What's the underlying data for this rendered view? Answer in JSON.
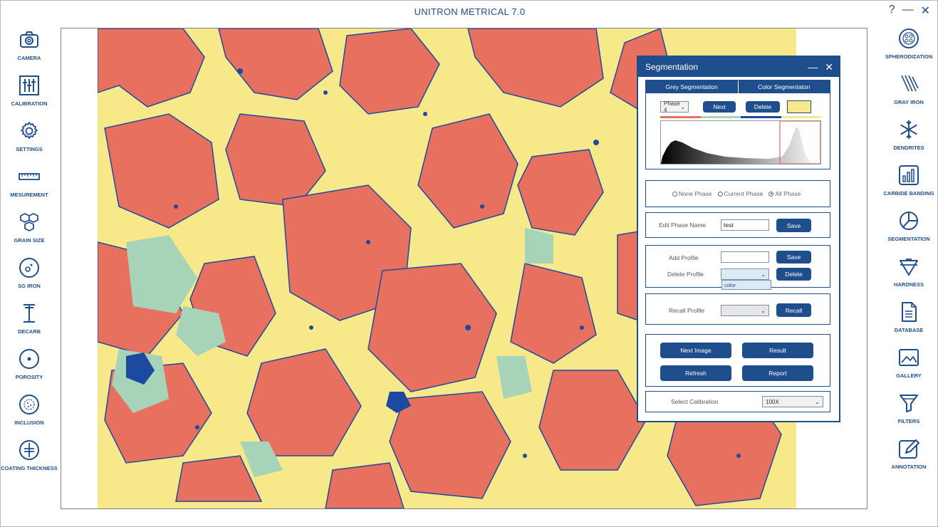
{
  "app": {
    "title": "UNITRON METRICAL 7.0"
  },
  "window_controls": {
    "help": "?",
    "minimize": "—",
    "close": "✕"
  },
  "left_toolbar": [
    {
      "label": "CAMERA",
      "icon": "camera-icon"
    },
    {
      "label": "CALIBRATION",
      "icon": "sliders-icon"
    },
    {
      "label": "SETTINGS",
      "icon": "gear-icon"
    },
    {
      "label": "MESUREMENT",
      "icon": "ruler-icon"
    },
    {
      "label": "GRAIN SIZE",
      "icon": "hexagons-icon"
    },
    {
      "label": "SG IRON",
      "icon": "sg-iron-icon"
    },
    {
      "label": "DECARB",
      "icon": "decarb-icon"
    },
    {
      "label": "POROSITY",
      "icon": "porosity-icon"
    },
    {
      "label": "INCLUSION",
      "icon": "inclusion-icon"
    },
    {
      "label": "COATING THICKNESS",
      "icon": "coating-icon"
    }
  ],
  "right_toolbar": [
    {
      "label": "SPHERODIZATION",
      "icon": "spherodization-icon"
    },
    {
      "label": "GRAY IRON",
      "icon": "gray-iron-icon"
    },
    {
      "label": "DENDRITES",
      "icon": "snowflake-icon"
    },
    {
      "label": "CARBIDE BANDING",
      "icon": "bar-chart-icon"
    },
    {
      "label": "SEGMENTATION",
      "icon": "pie-chart-icon"
    },
    {
      "label": "HARDNESS",
      "icon": "hardness-icon"
    },
    {
      "label": "DATABASE",
      "icon": "document-icon"
    },
    {
      "label": "GALLERY",
      "icon": "gallery-icon"
    },
    {
      "label": "FILTERS",
      "icon": "filter-icon"
    },
    {
      "label": "ANNOTATION",
      "icon": "pencil-icon"
    }
  ],
  "colors": {
    "primary": "#1f4e8c",
    "phase_red": "#e8705e",
    "phase_yellow": "#f7e98a",
    "phase_green": "#a7d3b8",
    "phase_blue": "#1b4aa0"
  },
  "segmentation": {
    "title": "Segmentation",
    "minimize": "—",
    "close": "✕",
    "tabs": [
      "Grey Segmentation",
      "Color Segmentaton"
    ],
    "phase_select": "Phase 4",
    "next_button": "Next",
    "delete_button": "Delete",
    "current_phase_color": "#f7e98a",
    "phase_options": [
      "None Phase",
      "Current Phase",
      "All Phase"
    ],
    "selected_phase_option": "All Phase",
    "edit_phase_name_label": "Edit Phase Name",
    "edit_phase_name_value": "test",
    "edit_save_button": "Save",
    "add_profile_label": "Add Profile",
    "add_profile_value": "",
    "add_save_button": "Save",
    "delete_profile_label": "Delete Profile",
    "delete_profile_value": "",
    "delete_profile_button": "Delete",
    "delete_profile_dropdown_item": "color",
    "recall_profile_label": "Recall Profile",
    "recall_profile_value": "",
    "recall_button": "Recall",
    "next_image_button": "Next Image",
    "result_button": "Result",
    "refresh_button": "Refresh",
    "report_button": "Report",
    "select_calibration_label": "Select Calibration",
    "calibration_value": "100X"
  }
}
